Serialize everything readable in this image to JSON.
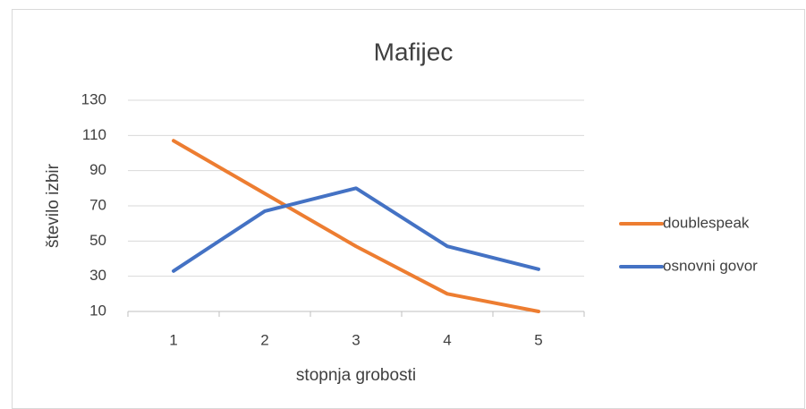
{
  "chart_data": {
    "type": "line",
    "title": "Mafijec",
    "x_label": "stopnja grobosti",
    "y_label": "število izbir",
    "categories": [
      "1",
      "2",
      "3",
      "4",
      "5"
    ],
    "series": [
      {
        "name": "doublespeak",
        "color": "#ed7d31",
        "values": [
          107,
          77,
          47,
          20,
          10
        ]
      },
      {
        "name": "osnovni govor",
        "color": "#4472c4",
        "values": [
          33,
          67,
          80,
          47,
          34
        ]
      }
    ],
    "ylim": [
      10,
      130
    ],
    "yticks": [
      10,
      30,
      50,
      70,
      90,
      110,
      130
    ],
    "grid": true,
    "legend": "right"
  }
}
